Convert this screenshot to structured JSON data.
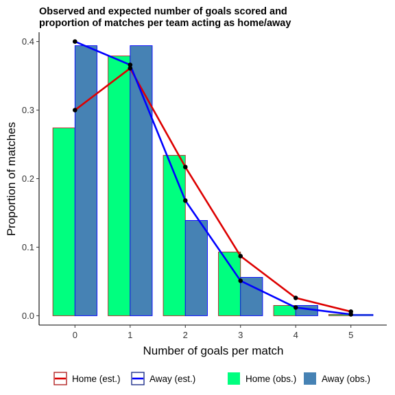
{
  "chart_data": {
    "type": "bar",
    "title_lines": [
      "Observed and expected number of goals scored and",
      "proportion of matches per team acting as home/away"
    ],
    "xlabel": "Number of goals per match",
    "ylabel": "Proportion of matches",
    "categories": [
      "0",
      "1",
      "2",
      "3",
      "4",
      "5"
    ],
    "x": [
      0,
      1,
      2,
      3,
      4,
      5
    ],
    "ylim": [
      -0.0136,
      0.4136
    ],
    "xlim": [
      -0.65,
      5.65
    ],
    "y_ticks": [
      0.0,
      0.1,
      0.2,
      0.3,
      0.4
    ],
    "y_tick_labels": [
      "0.0",
      "0.1",
      "0.2",
      "0.3",
      "0.4"
    ],
    "grid": false,
    "legend_position": "bottom",
    "bars": [
      {
        "name": "Home (obs.)",
        "values": [
          0.274,
          0.379,
          0.234,
          0.093,
          0.015,
          0.002
        ],
        "fill": "#00FF7F",
        "stroke": "#B22222"
      },
      {
        "name": "Away (obs.)",
        "values": [
          0.394,
          0.394,
          0.139,
          0.056,
          0.015,
          0.002
        ],
        "fill": "#4682B4",
        "stroke": "#0000FF"
      }
    ],
    "lines": [
      {
        "name": "Home (est.)",
        "values": [
          0.3,
          0.361,
          0.217,
          0.087,
          0.026,
          0.006
        ],
        "color": "#DD0000"
      },
      {
        "name": "Away (est.)",
        "values": [
          0.4,
          0.366,
          0.168,
          0.051,
          0.012,
          0.002
        ],
        "color": "#0000FF"
      }
    ],
    "legend": [
      {
        "label": "Home (est.)",
        "kind": "line",
        "color": "#DD0000",
        "box": "#B22222"
      },
      {
        "label": "Away (est.)",
        "kind": "line",
        "color": "#0000FF",
        "box": "#1C2E8A"
      },
      {
        "label": "Home (obs.)",
        "kind": "fill",
        "color": "#00FF7F"
      },
      {
        "label": "Away (obs.)",
        "kind": "fill",
        "color": "#4682B4"
      }
    ],
    "point_color": "#000000",
    "axis_color": "#000000"
  }
}
